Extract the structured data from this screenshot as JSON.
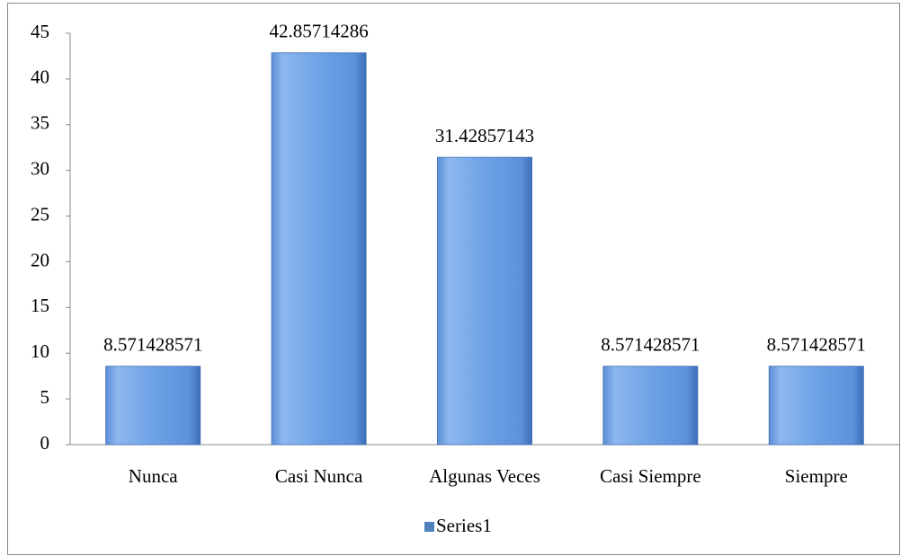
{
  "chart_data": {
    "type": "bar",
    "categories": [
      "Nunca",
      "Casi Nunca",
      "Algunas Veces",
      "Casi Siempre",
      "Siempre"
    ],
    "series": [
      {
        "name": "Series1",
        "color": "#4f81bd",
        "values": [
          8.571428571,
          42.85714286,
          31.42857143,
          8.571428571,
          8.571428571
        ]
      }
    ],
    "ylim": [
      0,
      45
    ],
    "yticks": [
      0,
      5,
      10,
      15,
      20,
      25,
      30,
      35,
      40,
      45
    ],
    "grid": false,
    "legend": "bottom"
  }
}
